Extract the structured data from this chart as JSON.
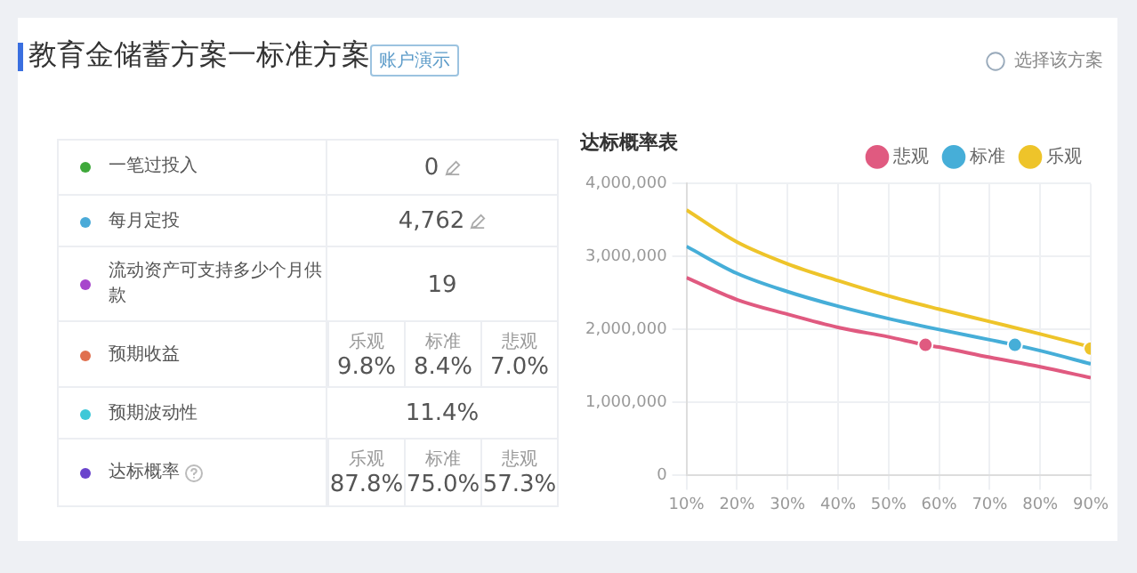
{
  "chart_data": [
    {
      "type": "other",
      "title": "教育金储蓄方案一标准方案",
      "categories": [
        "一笔过投入",
        "每月定投",
        "流动资产可支持多少个月供款",
        "预期收益",
        "预期波动性",
        "达标概率"
      ],
      "colors": [
        "#3ea83a",
        "#4aaad8",
        "#a745cc",
        "#e0704f",
        "#3ec8d8",
        "#6a44cc"
      ],
      "annotations": [
        "账户演示",
        "选择该方案",
        "0",
        "4,762",
        "19",
        "乐观",
        "9.8%",
        "标准",
        "8.4%",
        "悲观",
        "7.0%",
        "11.4%",
        "乐观",
        "87.8%",
        "标准",
        "75.0%",
        "悲观",
        "57.3%"
      ]
    },
    {
      "type": "line",
      "title": "达标概率表",
      "legend": "top right",
      "grid": true,
      "marker": "none",
      "xlim": [
        10,
        90
      ],
      "xticks": [
        {
          "value": 10,
          "label": "10%"
        },
        {
          "value": 20,
          "label": "20%"
        },
        {
          "value": 30,
          "label": "30%"
        },
        {
          "value": 40,
          "label": "40%"
        },
        {
          "value": 50,
          "label": "50%"
        },
        {
          "value": 60,
          "label": "60%"
        },
        {
          "value": 70,
          "label": "70%"
        },
        {
          "value": 80,
          "label": "80%"
        },
        {
          "value": 90,
          "label": "90%"
        }
      ],
      "ylim": [
        0,
        4000000
      ],
      "yticks": [
        0,
        {
          "value": 1000000,
          "label": "1,000,000"
        },
        {
          "value": 2000000,
          "label": "2,000,000"
        },
        {
          "value": 3000000,
          "label": "3,000,000"
        },
        {
          "value": 4000000,
          "label": "4,000,000"
        }
      ],
      "series": [
        {
          "name": "悲观",
          "color": "#e05a80",
          "x": [
            10,
            20,
            30,
            40,
            50,
            57.3,
            60,
            70,
            80,
            90
          ],
          "values": [
            2710000,
            2410000,
            2210000,
            2030000,
            1900000,
            1790000,
            1760000,
            1620000,
            1490000,
            1340000
          ]
        },
        {
          "name": "标准",
          "color": "#46aed8",
          "x": [
            10,
            20,
            30,
            40,
            50,
            60,
            70,
            75,
            80,
            90
          ],
          "values": [
            3140000,
            2770000,
            2520000,
            2320000,
            2150000,
            2000000,
            1860000,
            1790000,
            1710000,
            1530000
          ]
        },
        {
          "name": "乐观",
          "color": "#eec42a",
          "x": [
            10,
            20,
            30,
            40,
            50,
            60,
            70,
            80,
            90
          ],
          "values": [
            3640000,
            3200000,
            2900000,
            2670000,
            2460000,
            2280000,
            2110000,
            1940000,
            1760000
          ]
        },
        {
          "type": "scatter",
          "marker": "circle",
          "x": [
            57.3,
            75,
            90
          ],
          "values": [
            1790000,
            1790000,
            1740000
          ],
          "colors": [
            "#e05a80",
            "#46aed8",
            "#eec42a"
          ]
        }
      ]
    }
  ]
}
